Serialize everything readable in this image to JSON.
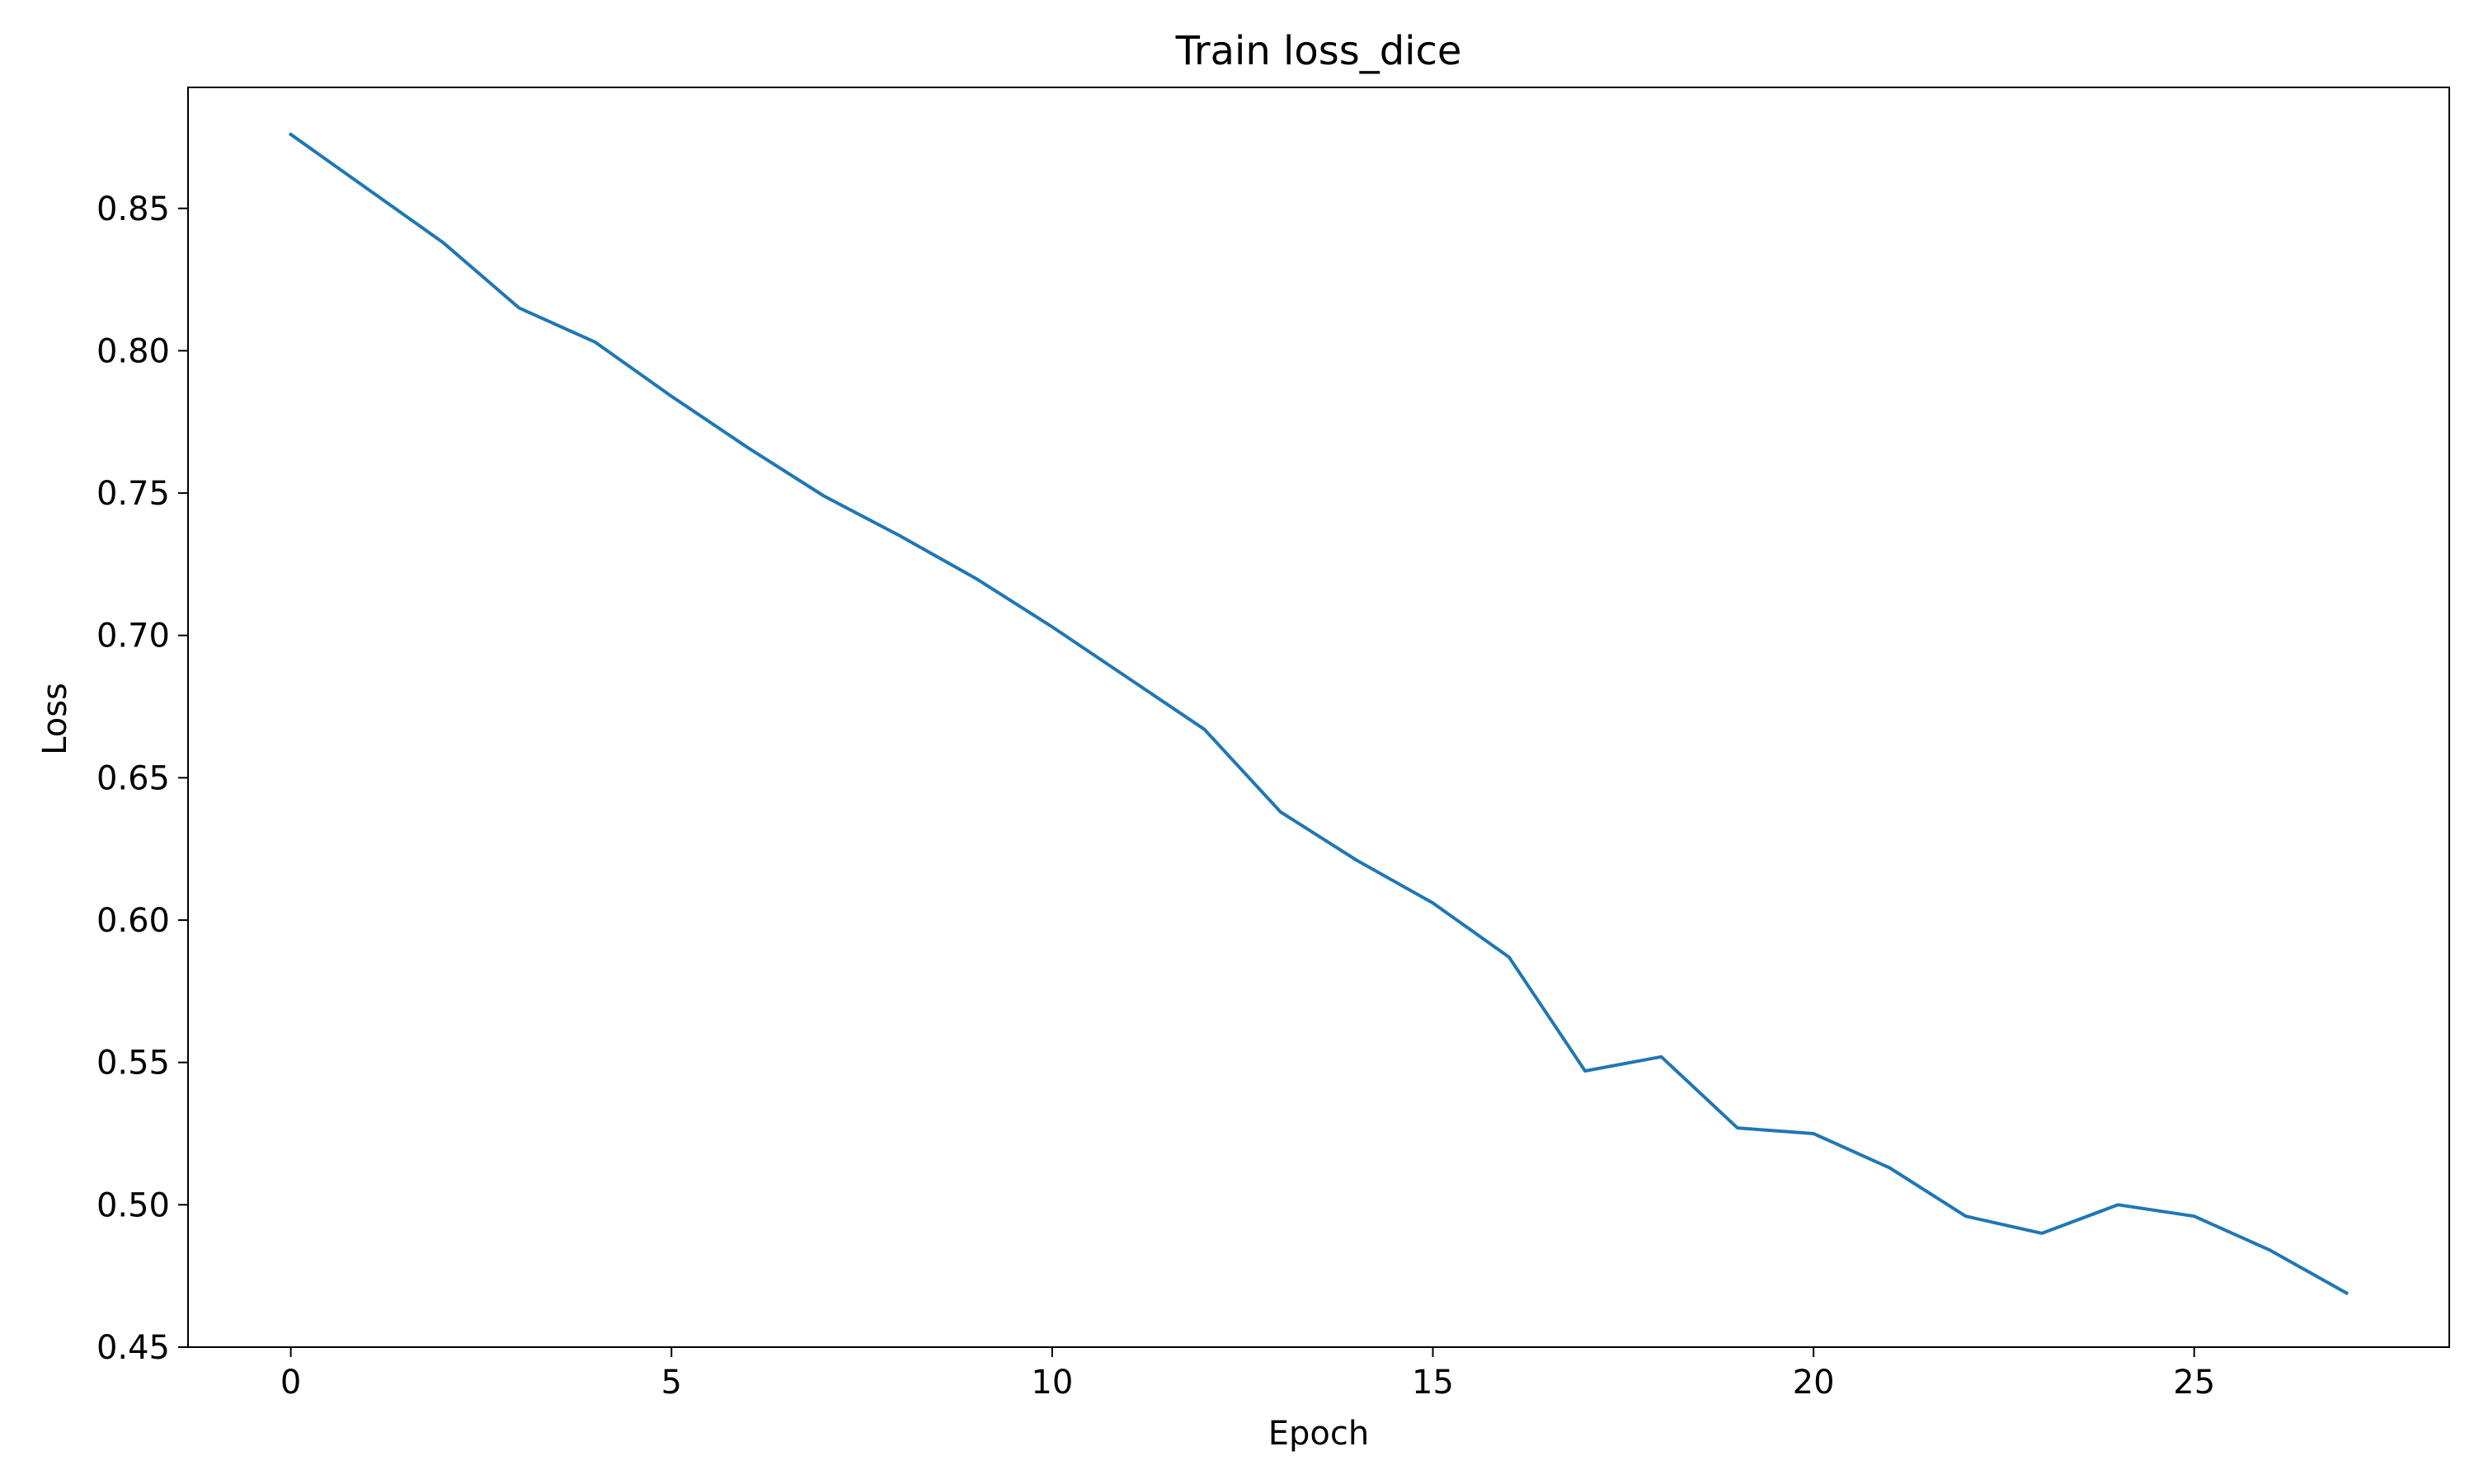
{
  "chart_data": {
    "type": "line",
    "title": "Train loss_dice",
    "xlabel": "Epoch",
    "ylabel": "Loss",
    "xlim": [
      -1.35,
      28.35
    ],
    "ylim": [
      0.45,
      0.8925
    ],
    "x_ticks": [
      0,
      5,
      10,
      15,
      20,
      25
    ],
    "y_ticks": [
      0.45,
      0.5,
      0.55,
      0.6,
      0.65,
      0.7,
      0.75,
      0.8,
      0.85
    ],
    "grid": false,
    "legend": "none",
    "series": [
      {
        "color": "#1f77b4",
        "x": [
          0,
          1,
          2,
          3,
          4,
          5,
          6,
          7,
          8,
          9,
          10,
          11,
          12,
          13,
          14,
          15,
          16,
          17,
          18,
          19,
          20,
          21,
          22,
          23,
          24,
          25,
          26,
          27
        ],
        "values": [
          0.876,
          0.857,
          0.838,
          0.815,
          0.803,
          0.784,
          0.766,
          0.749,
          0.735,
          0.72,
          0.703,
          0.685,
          0.667,
          0.638,
          0.621,
          0.606,
          0.587,
          0.547,
          0.552,
          0.527,
          0.525,
          0.513,
          0.496,
          0.49,
          0.5,
          0.496,
          0.484,
          0.469
        ]
      }
    ]
  }
}
